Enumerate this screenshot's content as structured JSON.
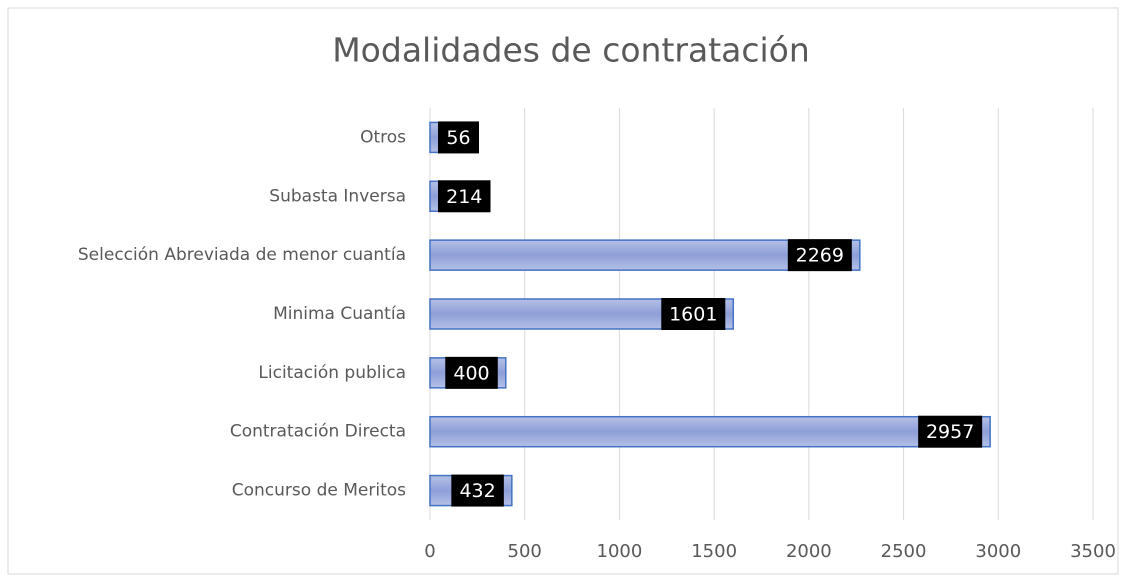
{
  "chart_data": {
    "type": "hbar",
    "title": "Modalidades de contratación",
    "categories": [
      "Otros",
      "Subasta Inversa",
      "Selección Abreviada de menor cuantía",
      "Minima Cuantía",
      "Licitación publica",
      "Contratación Directa",
      "Concurso de Meritos"
    ],
    "values": [
      56,
      214,
      2269,
      1601,
      400,
      2957,
      432
    ],
    "color": "#4472c4",
    "xlim": [
      0,
      3500
    ],
    "xticks": [
      0,
      500,
      1000,
      1500,
      2000,
      2500,
      3000,
      3500
    ],
    "grid": true
  }
}
